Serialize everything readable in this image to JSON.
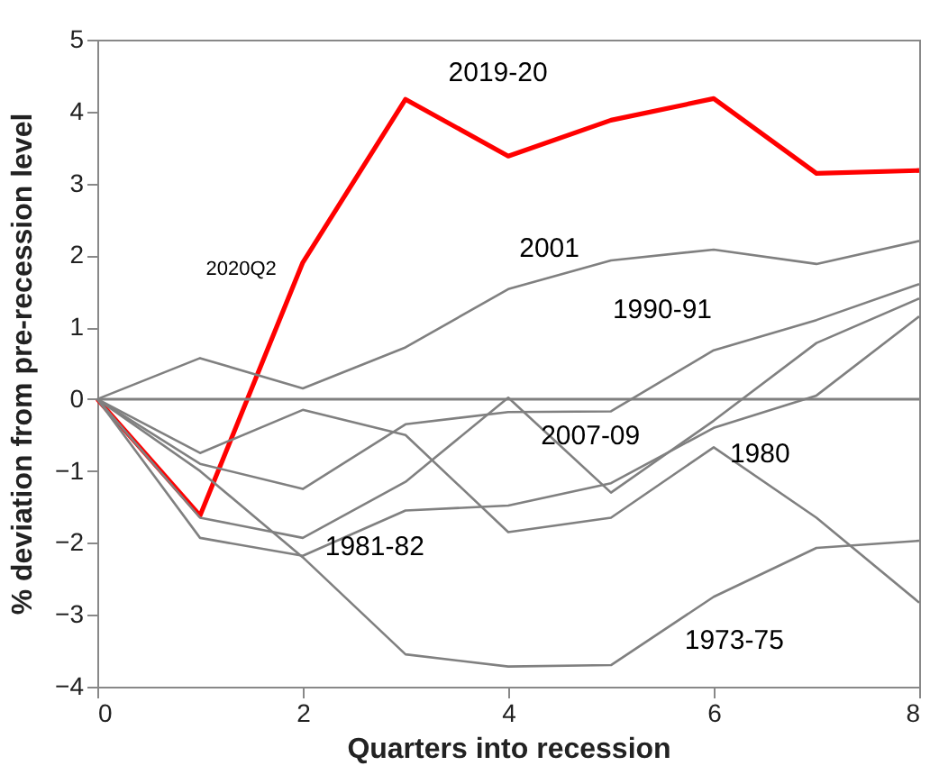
{
  "chart_data": {
    "type": "line",
    "xlabel": "Quarters into recession",
    "ylabel": "% deviation from pre-recession level",
    "x": [
      0,
      1,
      2,
      3,
      4,
      5,
      6,
      7,
      8
    ],
    "series": [
      {
        "name": "2019-20",
        "color": "#ff0000",
        "values": [
          0,
          -1.62,
          1.9,
          4.17,
          3.38,
          3.88,
          4.18,
          3.14,
          3.18
        ]
      },
      {
        "name": "2001",
        "color": "#808080",
        "values": [
          0,
          0.57,
          0.15,
          0.72,
          1.53,
          1.93,
          2.08,
          1.88,
          2.2
        ]
      },
      {
        "name": "1990-91",
        "color": "#808080",
        "values": [
          0,
          -0.9,
          -1.25,
          -0.35,
          -0.18,
          -0.17,
          0.68,
          1.1,
          1.6
        ]
      },
      {
        "name": "2007-09",
        "color": "#808080",
        "values": [
          0,
          -1.65,
          -1.93,
          -1.15,
          0.02,
          -1.3,
          -0.3,
          0.78,
          1.4
        ]
      },
      {
        "name": "1980",
        "color": "#808080",
        "values": [
          0,
          -0.75,
          -0.15,
          -0.5,
          -1.85,
          -1.65,
          -0.67,
          -1.65,
          -2.83
        ]
      },
      {
        "name": "1981-82",
        "color": "#808080",
        "values": [
          0,
          -1.93,
          -2.18,
          -1.55,
          -1.48,
          -1.17,
          -0.4,
          0.05,
          1.15
        ]
      },
      {
        "name": "1973-75",
        "color": "#808080",
        "values": [
          0,
          -1.0,
          -2.2,
          -3.55,
          -3.72,
          -3.7,
          -2.75,
          -2.07,
          -1.97
        ]
      }
    ],
    "annotations": [
      "2020Q2"
    ],
    "ref_lines": [
      {
        "axis": "y",
        "value": 0,
        "color": "#808080"
      }
    ],
    "xlim": [
      0,
      8
    ],
    "xticks": [
      0,
      2,
      4,
      6,
      8
    ],
    "ylim": [
      -4,
      5
    ],
    "yticks": [
      -4,
      -3,
      -2,
      -1,
      0,
      1,
      2,
      3,
      4,
      5
    ],
    "grid": false,
    "legend": false,
    "marker": "none",
    "line_style": "solid"
  }
}
